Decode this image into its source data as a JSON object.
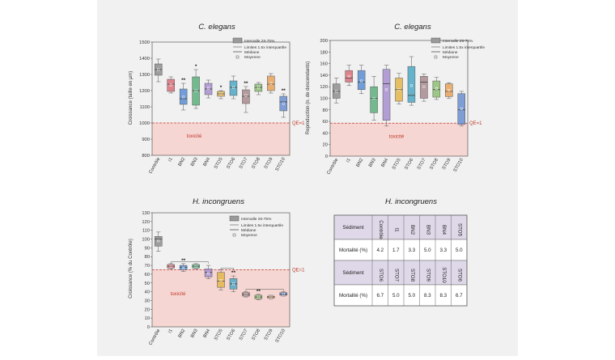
{
  "colors": {
    "Contrôle": "#8f8f8f",
    "I1": "#d9707a",
    "BN2": "#5b8fd4",
    "BN3": "#5cb07c",
    "BN4": "#a78fcf",
    "STO5": "#e3b54d",
    "STO6": "#4fa8c5",
    "STO7": "#a9898f",
    "STO8": "#8ebf73",
    "STO9": "#e8a25a",
    "STO10": "#6a8fd0",
    "toxic_band": "#f6d6d2",
    "qe_line": "#c0392b"
  },
  "legend": {
    "box": "Intervalle 25-75%",
    "whisker": "Limites 1.5x interquartile",
    "median": "Médiane",
    "mean": "Moyenne"
  },
  "chart_data": [
    {
      "id": "growth",
      "type": "boxplot",
      "title": "C. elegans",
      "ylabel": "Croissance (taille en µm)",
      "ylim": [
        800,
        1500
      ],
      "yticks": [
        800,
        900,
        1000,
        1100,
        1200,
        1300,
        1400,
        1500
      ],
      "categories": [
        "Contrôle",
        "I1",
        "BN2",
        "BN3",
        "BN4",
        "STO5",
        "STO6",
        "STO7",
        "STO8",
        "STO9",
        "STO10"
      ],
      "boxes": [
        {
          "min": 1255,
          "q1": 1295,
          "median": 1330,
          "q3": 1365,
          "max": 1395,
          "mean": 1330
        },
        {
          "min": 1185,
          "q1": 1195,
          "median": 1240,
          "q3": 1270,
          "max": 1285,
          "mean": 1235
        },
        {
          "min": 1080,
          "q1": 1115,
          "median": 1150,
          "q3": 1210,
          "max": 1245,
          "mean": 1160
        },
        {
          "min": 1090,
          "q1": 1110,
          "median": 1200,
          "q3": 1285,
          "max": 1330,
          "mean": 1200
        },
        {
          "min": 1155,
          "q1": 1175,
          "median": 1210,
          "q3": 1245,
          "max": 1265,
          "mean": 1215
        },
        {
          "min": 1150,
          "q1": 1165,
          "median": 1180,
          "q3": 1195,
          "max": 1200,
          "mean": 1180
        },
        {
          "min": 1150,
          "q1": 1170,
          "median": 1220,
          "q3": 1260,
          "max": 1290,
          "mean": 1220
        },
        {
          "min": 1065,
          "q1": 1120,
          "median": 1165,
          "q3": 1205,
          "max": 1225,
          "mean": 1170
        },
        {
          "min": 1175,
          "q1": 1195,
          "median": 1220,
          "q3": 1240,
          "max": 1250,
          "mean": 1220
        },
        {
          "min": 1185,
          "q1": 1200,
          "median": 1240,
          "q3": 1290,
          "max": 1305,
          "mean": 1245
        },
        {
          "min": 1035,
          "q1": 1075,
          "median": 1130,
          "q3": 1165,
          "max": 1180,
          "mean": 1120
        }
      ],
      "annotations": [
        "",
        "",
        "**",
        "*",
        "",
        "*",
        "",
        "**",
        "",
        "",
        "**"
      ],
      "qe_value": 1000,
      "qe_label": "QE=1",
      "toxic_label": "toxicité"
    },
    {
      "id": "repro",
      "type": "boxplot",
      "title": "C. elegans",
      "ylabel": "Reproduction (n. de descendants)",
      "ylim": [
        0,
        200
      ],
      "yticks": [
        0,
        20,
        40,
        60,
        80,
        100,
        120,
        140,
        160,
        180,
        200
      ],
      "categories": [
        "Contrôle",
        "I1",
        "BN2",
        "BN3",
        "BN4",
        "STO5",
        "STO6",
        "STO7",
        "STO8",
        "STO9",
        "STO10"
      ],
      "boxes": [
        {
          "min": 92,
          "q1": 100,
          "median": 112,
          "q3": 125,
          "max": 135,
          "mean": 112
        },
        {
          "min": 122,
          "q1": 128,
          "median": 135,
          "q3": 148,
          "max": 157,
          "mean": 138
        },
        {
          "min": 108,
          "q1": 115,
          "median": 128,
          "q3": 148,
          "max": 157,
          "mean": 130
        },
        {
          "min": 62,
          "q1": 75,
          "median": 100,
          "q3": 120,
          "max": 138,
          "mean": 100
        },
        {
          "min": 52,
          "q1": 62,
          "median": 125,
          "q3": 150,
          "max": 157,
          "mean": 115
        },
        {
          "min": 90,
          "q1": 95,
          "median": 115,
          "q3": 135,
          "max": 143,
          "mean": 115
        },
        {
          "min": 88,
          "q1": 93,
          "median": 105,
          "q3": 155,
          "max": 172,
          "mean": 122
        },
        {
          "min": 95,
          "q1": 100,
          "median": 128,
          "q3": 138,
          "max": 142,
          "mean": 120
        },
        {
          "min": 98,
          "q1": 102,
          "median": 115,
          "q3": 130,
          "max": 136,
          "mean": 117
        },
        {
          "min": 100,
          "q1": 103,
          "median": 112,
          "q3": 125,
          "max": 127,
          "mean": 114
        },
        {
          "min": 52,
          "q1": 55,
          "median": 80,
          "q3": 108,
          "max": 112,
          "mean": 82
        }
      ],
      "annotations": [
        "",
        "",
        "",
        "",
        "",
        "",
        "",
        "",
        "",
        "",
        ""
      ],
      "qe_value": 57,
      "qe_label": "QE=1",
      "toxic_label": "toxicité"
    },
    {
      "id": "hinc",
      "type": "boxplot",
      "title": "H. incongruens",
      "ylabel": "Croissance (% du Contrôle)",
      "ylim": [
        0,
        130
      ],
      "yticks": [
        0,
        10,
        20,
        30,
        40,
        50,
        60,
        70,
        80,
        90,
        100,
        110,
        120,
        130
      ],
      "categories": [
        "Contrôle",
        "I1",
        "BN2",
        "BN3",
        "BN4",
        "STO5",
        "STO6",
        "STO7",
        "STO8",
        "STO9",
        "STO10"
      ],
      "boxes": [
        {
          "min": 86,
          "q1": 92,
          "median": 100,
          "q3": 103,
          "max": 108,
          "mean": 98
        },
        {
          "min": 66,
          "q1": 67,
          "median": 69,
          "q3": 71,
          "max": 72,
          "mean": 69
        },
        {
          "min": 63,
          "q1": 65,
          "median": 68,
          "q3": 70,
          "max": 72,
          "mean": 67
        },
        {
          "min": 66,
          "q1": 67,
          "median": 69,
          "q3": 71,
          "max": 72,
          "mean": 69
        },
        {
          "min": 55,
          "q1": 57,
          "median": 62,
          "q3": 66,
          "max": 70,
          "mean": 61
        },
        {
          "min": 42,
          "q1": 45,
          "median": 52,
          "q3": 62,
          "max": 65,
          "mean": 53
        },
        {
          "min": 40,
          "q1": 43,
          "median": 49,
          "q3": 55,
          "max": 58,
          "mean": 49
        },
        {
          "min": 34,
          "q1": 35,
          "median": 37,
          "q3": 39,
          "max": 40,
          "mean": 37
        },
        {
          "min": 31,
          "q1": 32,
          "median": 34,
          "q3": 36,
          "max": 37,
          "mean": 34
        },
        {
          "min": 32,
          "q1": 33,
          "median": 34,
          "q3": 35,
          "max": 36,
          "mean": 34
        },
        {
          "min": 35,
          "q1": 36,
          "median": 37,
          "q3": 39,
          "max": 40,
          "mean": 37
        }
      ],
      "annotations": [
        "",
        "",
        "**",
        "",
        "",
        "",
        "**",
        "",
        "**",
        "",
        ""
      ],
      "qe_value": 65,
      "qe_label": "QE=1",
      "toxic_label": "toxicité"
    },
    {
      "id": "mortality",
      "type": "table",
      "title": "H. incongruens",
      "tables": [
        {
          "header": "Sédiment",
          "columns": [
            "Contrôle",
            "I1",
            "BN2",
            "BN3",
            "BN4",
            "STO5"
          ],
          "row_label": "Mortalité (%)",
          "values": [
            "4.2",
            "1.7",
            "3.3",
            "5.0",
            "3.3",
            "5.0"
          ]
        },
        {
          "header": "Sédiment",
          "columns": [
            "STO6",
            "STO7",
            "STO8",
            "STO9",
            "STO10",
            "STO6"
          ],
          "row_label": "Mortalité (%)",
          "values": [
            "6.7",
            "5.0",
            "5.0",
            "8.3",
            "8.3",
            "6.7"
          ]
        }
      ]
    }
  ]
}
